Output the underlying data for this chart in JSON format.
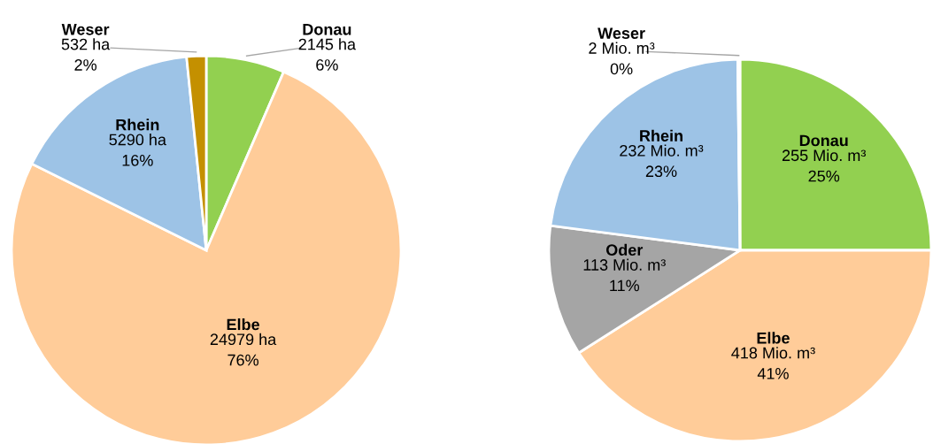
{
  "chart_data": [
    {
      "type": "pie",
      "categories": [
        "Donau",
        "Elbe",
        "Rhein",
        "Weser"
      ],
      "values": [
        2145,
        24979,
        5290,
        532
      ],
      "colors": [
        "#92d050",
        "#ffcc99",
        "#9dc3e6",
        "#c49000"
      ],
      "value_labels": [
        "2145 ha\n6%",
        "24979 ha\n76%",
        "5290 ha\n16%",
        "532 ha\n2%"
      ]
    },
    {
      "type": "pie",
      "categories": [
        "Donau",
        "Elbe",
        "Oder",
        "Rhein",
        "Weser"
      ],
      "values": [
        255,
        418,
        113,
        232,
        2
      ],
      "colors": [
        "#92d050",
        "#ffcc99",
        "#a5a5a5",
        "#9dc3e6",
        "#c49000"
      ],
      "value_labels": [
        "255 Mio. m³\n25%",
        "418 Mio. m³\n41%",
        "113 Mio. m³\n11%",
        "232 Mio. m³\n23%",
        "2 Mio. m³\n0%"
      ]
    }
  ]
}
